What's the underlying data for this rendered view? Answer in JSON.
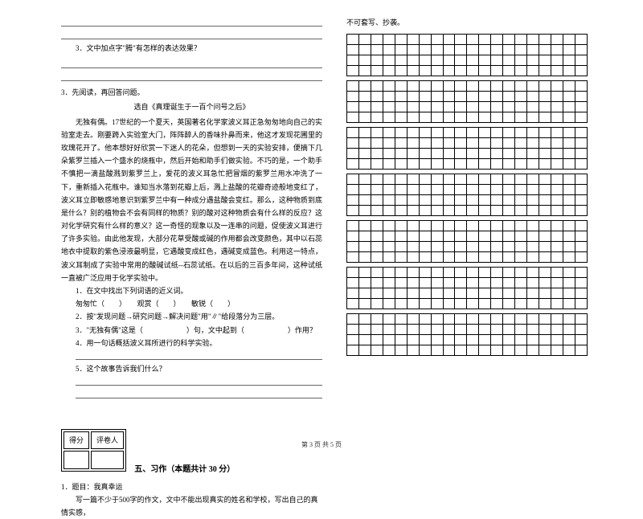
{
  "footer": "第 3 页  共 5 页",
  "left": {
    "q3_sub": "3．文中加点字\"腾\"有怎样的表达效果？",
    "q3_main": "3．先阅读，再回答问题。",
    "source": "选自《真理诞生于一百个问号之后》",
    "passage": "无独有偶。17世纪的一个夏天，英国著名化学家波义耳正急匆匆地向自己的实验室走去。刚要跨入实验室大门，阵阵醉人的香味扑鼻而来，他这才发现花圃里的玫瑰花开了。他本想好好欣赏一下迷人的花朵，但想到一天的实验安排，便摘下几朵紫罗兰插入一个盛水的烧瓶中，然后开始和助手们做实验。不巧的是，一个助手不慎把一滴盐酸溅到紫罗兰上，爱花的波义耳急忙把冒烟的紫罗兰用水冲洗了一下，重新插入花瓶中。谁知当水落到花瓣上后，溅上盐酸的花瓣奇迹般地变红了，波义耳立即敏感地意识到紫罗兰中有一种成分遇盐酸会变红。那么，这种物质到底是什么？别的植物会不会有同样的物质？别的酸对这种物质会有什么样的反应？这对化学研究有什么样的意义？这一奇怪的现象以及一连串的问题，促使波义耳进行了许多实验。由此他发现，大部分花草受酸或碱的作用都会改变颜色，其中以石蕊地衣中提取的紫色浸液最明显，它遇酸变成红色，遇碱变成蓝色。利用这一特点，波义耳制成了实验中常用的酸碱试纸--石蕊试纸。在以后的三百多年间，这种试纸一直被广泛应用于化学实验中。",
    "sub1": "1．在文中找出下列词语的近义词。",
    "sub1_line": "匆匆忙（　　）　　观赏（　　）　　敏锐（　　）",
    "sub2": "2．按\"发现问题→研究问题→解决问题\"用\"∥\"给段落分为三层。",
    "sub3a": "3．\"无独有偶\"这是（　　　　　　）句，文中起到（　　　　　　）作用？",
    "sub4": "4．用一句话概括波义耳所进行的科学实验。",
    "sub5": "5．这个故事告诉我们什么？",
    "score_col1": "得分",
    "score_col2": "评卷人",
    "section5": "五、习作（本题共计 30 分）",
    "essay_num": "1．题目：我真幸运",
    "essay_req": "写一篇不少于500字的作文，文中不能出现真实的姓名和学校，写出自己的真情实感，"
  },
  "right": {
    "top_note": "不可套写、抄袭。"
  },
  "grid": {
    "blocks": 7,
    "rows_per_block": 4,
    "cols": 20
  }
}
